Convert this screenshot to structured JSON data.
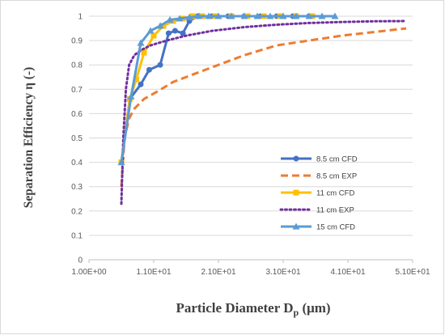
{
  "chart_data": {
    "type": "line",
    "xlabel": "Particle Diameter D",
    "xlabel_sub": "p",
    "xlabel_unit": " (μm)",
    "ylabel": "Separation Efficiency η (-)",
    "x_tick_labels": [
      "1.00E+00",
      "1.10E+01",
      "2.10E+01",
      "3.10E+01",
      "4.10E+01",
      "5.10E+01"
    ],
    "x_ticks": [
      1,
      11,
      21,
      31,
      41,
      51
    ],
    "xlim": [
      1,
      51
    ],
    "y_tick_labels": [
      "0",
      "0.1",
      "0.2",
      "0.3",
      "0.4",
      "0.5",
      "0.6",
      "0.7",
      "0.8",
      "0.9",
      "1"
    ],
    "y_ticks": [
      0,
      0.1,
      0.2,
      0.3,
      0.4,
      0.5,
      0.6,
      0.7,
      0.8,
      0.9,
      1
    ],
    "ylim": [
      0,
      1
    ],
    "grid": "horizontal",
    "legend_position": "right",
    "series": [
      {
        "name": "8.5 cm CFD",
        "color": "#4472C4",
        "style": "solid",
        "marker": "circle",
        "x": [
          6.0,
          7.3,
          9.0,
          10.3,
          12.0,
          13.3,
          14.3,
          15.5,
          16.5,
          17.8,
          20.0,
          22.5,
          25.0,
          27.5,
          30.0,
          32.5,
          35.0
        ],
        "y": [
          0.4,
          0.66,
          0.72,
          0.78,
          0.8,
          0.93,
          0.94,
          0.93,
          0.98,
          1.0,
          1.0,
          1.0,
          1.0,
          1.0,
          1.0,
          1.0,
          1.0
        ]
      },
      {
        "name": "8.5 cm EXP",
        "color": "#ED7D31",
        "style": "dashed",
        "marker": "none",
        "x": [
          6.0,
          6.5,
          7.2,
          8.0,
          9.5,
          11.5,
          14.0,
          17.0,
          20.0,
          25.0,
          30.0,
          35.0,
          40.0,
          45.0,
          50.0
        ],
        "y": [
          0.3,
          0.5,
          0.58,
          0.62,
          0.66,
          0.69,
          0.73,
          0.76,
          0.79,
          0.84,
          0.88,
          0.9,
          0.92,
          0.935,
          0.95
        ]
      },
      {
        "name": "11 cm CFD",
        "color": "#FFC000",
        "style": "solid",
        "marker": "square",
        "x": [
          6.0,
          7.3,
          8.3,
          9.5,
          11.0,
          12.5,
          14.0,
          15.5,
          17.0,
          18.5,
          20.5,
          23.0,
          25.5,
          28.0,
          30.5,
          33.0,
          35.5
        ],
        "y": [
          0.4,
          0.66,
          0.74,
          0.85,
          0.92,
          0.96,
          0.98,
          0.99,
          1.0,
          1.0,
          1.0,
          1.0,
          1.0,
          1.0,
          1.0,
          1.0,
          1.0
        ]
      },
      {
        "name": "11 cm EXP",
        "color": "#7030A0",
        "style": "dotted",
        "marker": "none",
        "x": [
          6.0,
          6.3,
          6.7,
          7.2,
          8.0,
          9.0,
          10.5,
          13.0,
          16.0,
          20.0,
          25.0,
          30.0,
          35.0,
          40.0,
          45.0,
          50.0
        ],
        "y": [
          0.23,
          0.5,
          0.7,
          0.8,
          0.84,
          0.86,
          0.88,
          0.9,
          0.92,
          0.94,
          0.955,
          0.965,
          0.972,
          0.976,
          0.979,
          0.98
        ]
      },
      {
        "name": "15 cm CFD",
        "color": "#5B9BD5",
        "style": "solid",
        "marker": "triangle",
        "x": [
          6.0,
          7.5,
          9.0,
          10.5,
          12.0,
          13.5,
          15.0,
          16.5,
          18.0,
          19.5,
          21.0,
          23.0,
          25.0,
          27.0,
          29.0,
          31.0,
          33.0,
          35.0,
          37.0,
          39.0
        ],
        "y": [
          0.4,
          0.67,
          0.89,
          0.94,
          0.96,
          0.985,
          0.99,
          0.995,
          1.0,
          1.0,
          1.0,
          1.0,
          1.0,
          1.0,
          1.0,
          1.0,
          1.0,
          1.0,
          1.0,
          1.0
        ]
      }
    ]
  }
}
